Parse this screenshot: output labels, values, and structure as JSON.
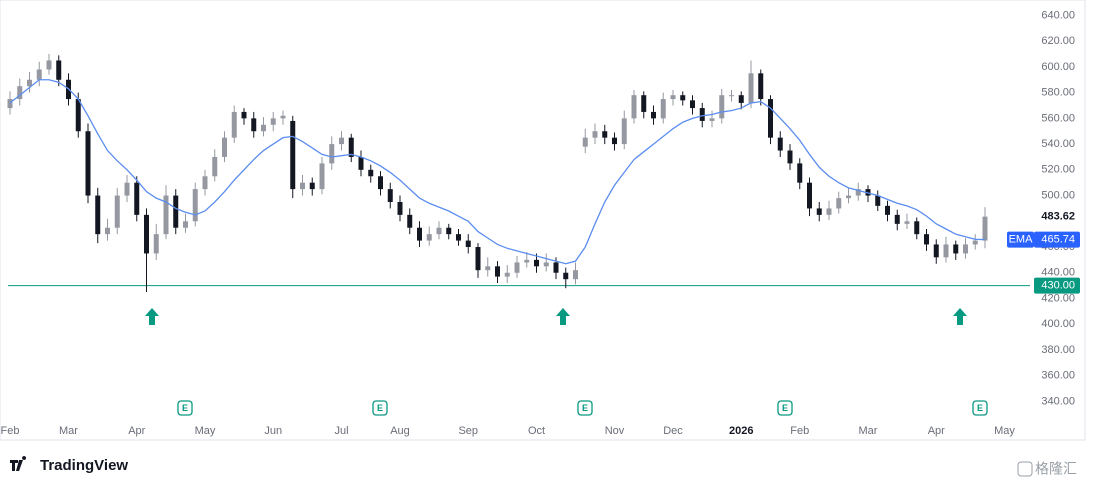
{
  "chart_data": {
    "type": "candlestick",
    "categories": [
      "Feb",
      null,
      null,
      null,
      null,
      null,
      "Mar",
      null,
      null,
      null,
      null,
      null,
      null,
      "Apr",
      null,
      null,
      null,
      null,
      null,
      null,
      "May",
      null,
      null,
      null,
      null,
      null,
      null,
      "Jun",
      null,
      null,
      null,
      null,
      null,
      null,
      "Jul",
      null,
      null,
      null,
      null,
      null,
      "Aug",
      null,
      null,
      null,
      null,
      null,
      null,
      "Sep",
      null,
      null,
      null,
      null,
      null,
      null,
      "Oct",
      null,
      null,
      null,
      null,
      null,
      null,
      null,
      "Nov",
      null,
      null,
      null,
      null,
      null,
      "Dec",
      null,
      null,
      null,
      null,
      null,
      null,
      "2026",
      null,
      null,
      null,
      null,
      null,
      "Feb",
      null,
      null,
      null,
      null,
      null,
      null,
      "Mar",
      null,
      null,
      null,
      null,
      null,
      null,
      "Apr",
      null,
      null,
      null,
      null,
      null,
      null,
      "May"
    ],
    "open": [
      568,
      575,
      585,
      590,
      598,
      605,
      590,
      575,
      550,
      500,
      470,
      475,
      500,
      510,
      485,
      455,
      470,
      500,
      475,
      480,
      505,
      515,
      530,
      545,
      565,
      560,
      550,
      555,
      560,
      558,
      505,
      510,
      505,
      525,
      540,
      545,
      530,
      520,
      515,
      505,
      495,
      485,
      475,
      465,
      470,
      475,
      470,
      465,
      460,
      442,
      445,
      437,
      440,
      448,
      450,
      445,
      448,
      440,
      435,
      538,
      545,
      550,
      545,
      540,
      560,
      578,
      565,
      560,
      575,
      578,
      574,
      568,
      558,
      560,
      578,
      578,
      572,
      595,
      575,
      545,
      535,
      525,
      510,
      490,
      485,
      490,
      498,
      500,
      505,
      500,
      492,
      485,
      478,
      480,
      470,
      462,
      452,
      462,
      455,
      462,
      465,
      null,
      null
    ],
    "high": [
      581,
      591,
      596,
      604,
      610,
      609,
      595,
      580,
      556,
      506,
      482,
      506,
      516,
      515,
      490,
      478,
      508,
      505,
      486,
      510,
      520,
      536,
      550,
      570,
      568,
      565,
      561,
      565,
      566,
      562,
      516,
      514,
      530,
      546,
      550,
      548,
      535,
      524,
      519,
      510,
      500,
      490,
      480,
      476,
      480,
      478,
      474,
      470,
      463,
      452,
      449,
      446,
      453,
      456,
      455,
      455,
      452,
      444,
      448,
      552,
      556,
      555,
      549,
      566,
      582,
      581,
      570,
      580,
      582,
      581,
      578,
      572,
      566,
      583,
      582,
      581,
      605,
      598,
      578,
      550,
      540,
      529,
      514,
      495,
      496,
      503,
      506,
      510,
      508,
      504,
      496,
      489,
      486,
      483,
      474,
      466,
      468,
      465,
      467,
      470,
      491,
      null,
      null
    ],
    "low": [
      563,
      570,
      580,
      585,
      594,
      585,
      570,
      545,
      494,
      463,
      465,
      470,
      495,
      480,
      425,
      450,
      466,
      470,
      471,
      476,
      500,
      511,
      526,
      541,
      555,
      545,
      546,
      550,
      555,
      498,
      500,
      500,
      501,
      520,
      535,
      526,
      515,
      510,
      500,
      490,
      480,
      470,
      460,
      461,
      466,
      466,
      461,
      455,
      436,
      437,
      432,
      432,
      436,
      444,
      440,
      441,
      435,
      428,
      431,
      533,
      540,
      540,
      535,
      536,
      556,
      560,
      555,
      556,
      570,
      570,
      563,
      553,
      553,
      556,
      573,
      567,
      568,
      570,
      540,
      530,
      520,
      505,
      484,
      480,
      481,
      486,
      494,
      496,
      495,
      488,
      480,
      473,
      474,
      466,
      457,
      447,
      448,
      450,
      451,
      458,
      459,
      null,
      null
    ],
    "close": [
      575,
      585,
      590,
      598,
      605,
      590,
      575,
      550,
      500,
      470,
      475,
      500,
      510,
      485,
      455,
      470,
      500,
      475,
      480,
      505,
      515,
      530,
      545,
      565,
      560,
      550,
      555,
      560,
      562,
      505,
      510,
      505,
      525,
      540,
      545,
      530,
      520,
      515,
      505,
      495,
      485,
      475,
      465,
      470,
      475,
      470,
      465,
      460,
      442,
      445,
      437,
      440,
      448,
      450,
      445,
      448,
      440,
      435,
      442,
      545,
      550,
      545,
      540,
      560,
      578,
      565,
      560,
      575,
      578,
      574,
      568,
      558,
      560,
      578,
      578,
      572,
      595,
      575,
      545,
      535,
      525,
      510,
      490,
      485,
      490,
      498,
      500,
      505,
      500,
      492,
      485,
      478,
      480,
      470,
      462,
      452,
      462,
      455,
      462,
      465,
      483.62,
      null,
      null
    ],
    "up_color": "#9598a1",
    "down_color": "#131722",
    "series": [
      {
        "name": "EMA",
        "color": "#5b8def",
        "values": [
          572,
          578,
          584,
          590,
          590,
          588,
          583,
          575,
          562,
          548,
          535,
          527,
          520,
          512,
          503,
          498,
          495,
          490,
          487,
          485,
          488,
          495,
          503,
          512,
          520,
          528,
          535,
          540,
          545,
          546,
          542,
          537,
          532,
          530,
          531,
          532,
          530,
          527,
          523,
          518,
          512,
          505,
          498,
          494,
          491,
          488,
          484,
          480,
          472,
          467,
          462,
          459,
          457,
          455,
          453,
          451,
          449,
          447,
          449,
          460,
          478,
          495,
          508,
          518,
          528,
          534,
          540,
          546,
          552,
          557,
          560,
          562,
          563,
          565,
          566,
          568,
          572,
          573,
          568,
          560,
          552,
          543,
          532,
          522,
          515,
          510,
          506,
          504,
          502,
          500,
          497,
          494,
          492,
          489,
          484,
          478,
          474,
          470,
          468,
          466,
          465.74,
          null,
          null
        ]
      }
    ],
    "hline": {
      "value": 430,
      "label": "430.00",
      "color": "#089981"
    },
    "ylim": [
      310,
      652
    ],
    "yticks": [
      {
        "value": 340,
        "label": "340.00"
      },
      {
        "value": 360,
        "label": "360.00"
      },
      {
        "value": 380,
        "label": "380.00"
      },
      {
        "value": 400,
        "label": "400.00"
      },
      {
        "value": 420,
        "label": "420.00"
      },
      {
        "value": 440,
        "label": "440.00"
      },
      {
        "value": 460,
        "label": "460.00"
      },
      {
        "value": 480,
        "label": "480.00"
      },
      {
        "value": 500,
        "label": "500.00"
      },
      {
        "value": 520,
        "label": "520.00"
      },
      {
        "value": 540,
        "label": "540.00"
      },
      {
        "value": 560,
        "label": "560.00"
      },
      {
        "value": 580,
        "label": "580.00"
      },
      {
        "value": 600,
        "label": "600.00"
      },
      {
        "value": 620,
        "label": "620.00"
      },
      {
        "value": 640,
        "label": "640.00"
      }
    ],
    "grid": false,
    "earnings": [
      "E",
      "E",
      "E",
      "E",
      "E"
    ],
    "brand": "TradingView",
    "watermark": "格隆汇"
  }
}
